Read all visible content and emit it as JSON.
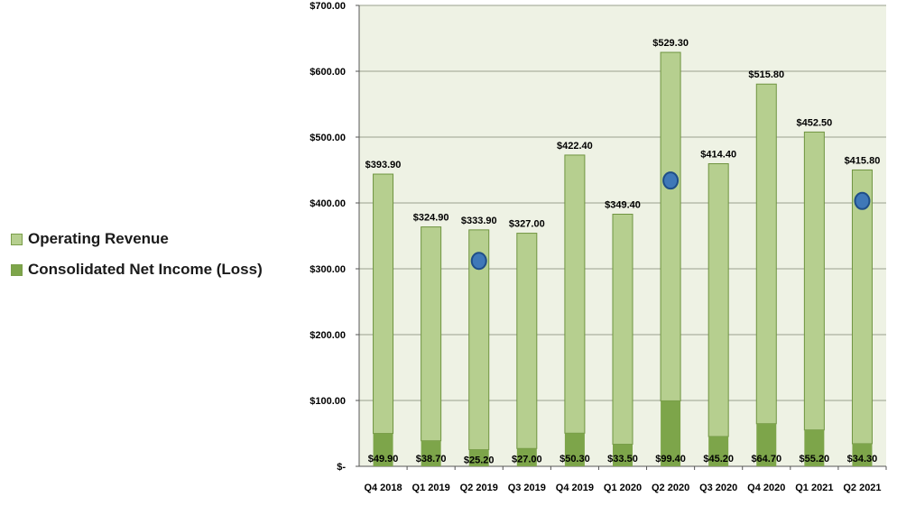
{
  "colors": {
    "plot_background": "#eef2e4",
    "revenue_fill": "#b6cf8f",
    "revenue_stroke": "#6f9440",
    "net_income_fill": "#7da54a",
    "marker_fill": "#3f78b8",
    "marker_stroke": "#1f4e88",
    "gridline": "#9aa08e"
  },
  "legend": {
    "placement": "left",
    "revenue_label": "Operating Revenue",
    "net_income_label": "Consolidated  Net Income (Loss)"
  },
  "chart_data": {
    "type": "bar",
    "stacked": true,
    "categories": [
      "Q4 2018",
      "Q1 2019",
      "Q2 2019",
      "Q3 2019",
      "Q4 2019",
      "Q1 2020",
      "Q2 2020",
      "Q3 2020",
      "Q4 2020",
      "Q1 2021",
      "Q2 2021"
    ],
    "series": [
      {
        "name": "Consolidated  Net Income (Loss)",
        "values": [
          49.9,
          38.7,
          25.2,
          27.0,
          50.3,
          33.5,
          99.4,
          45.2,
          64.7,
          55.2,
          34.3
        ],
        "labels": [
          "$49.90",
          "$38.70",
          "$25.20",
          "$27.00",
          "$50.30",
          "$33.50",
          "$99.40",
          "$45.20",
          "$64.70",
          "$55.20",
          "$34.30"
        ]
      },
      {
        "name": "Operating Revenue",
        "values": [
          393.9,
          324.9,
          333.9,
          327.0,
          422.4,
          349.4,
          529.3,
          414.4,
          515.8,
          452.5,
          415.8
        ],
        "labels": [
          "$393.90",
          "$324.90",
          "$333.90",
          "$327.00",
          "$422.40",
          "$349.40",
          "$529.30",
          "$414.40",
          "$515.80",
          "$452.50",
          "$415.80"
        ]
      }
    ],
    "markers": [
      {
        "category": "Q2 2019",
        "value": 312
      },
      {
        "category": "Q2 2020",
        "value": 434
      },
      {
        "category": "Q2 2021",
        "value": 403
      }
    ],
    "ylim": [
      0,
      700
    ],
    "yticks": [
      0,
      100,
      200,
      300,
      400,
      500,
      600,
      700
    ],
    "ytick_labels": [
      "$-",
      "$100.00",
      "$200.00",
      "$300.00",
      "$400.00",
      "$500.00",
      "$600.00",
      "$700.00"
    ],
    "grid": true,
    "title": "",
    "xlabel": "",
    "ylabel": ""
  }
}
